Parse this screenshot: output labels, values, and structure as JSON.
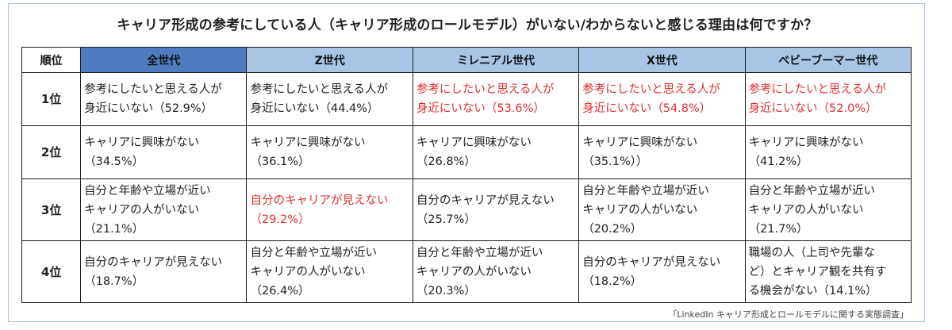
{
  "title": "キャリア形成の参考にしている人（キャリア形成のロールモデル）がいない/わからないと感じる理由は何ですか？",
  "headers": [
    "順位",
    "全世代",
    "Z世代",
    "ミレニアル世代",
    "X世代",
    "ベビーブーマー世代"
  ],
  "rows": [
    {
      "rank": "1位",
      "cells": [
        {
          "lines": [
            "参考にしたいと思える人が",
            "身近にいない（52.9%）"
          ],
          "highlight": false
        },
        {
          "lines": [
            "参考にしたいと思える人が",
            "身近にいない（44.4%）"
          ],
          "highlight": false
        },
        {
          "lines": [
            "参考にしたいと思える人が",
            "身近にいない（53.6%）"
          ],
          "highlight": true
        },
        {
          "lines": [
            "参考にしたいと思える人が",
            "身近にいない（54.8%）"
          ],
          "highlight": true
        },
        {
          "lines": [
            "参考にしたいと思える人が",
            "身近にいない（52.0%）"
          ],
          "highlight": true
        }
      ]
    },
    {
      "rank": "2位",
      "cells": [
        {
          "lines": [
            "キャリアに興味がない",
            "（34.5%）"
          ],
          "highlight": false
        },
        {
          "lines": [
            "キャリアに興味がない",
            "（36.1%）"
          ],
          "highlight": false
        },
        {
          "lines": [
            "キャリアに興味がない",
            "（26.8%）"
          ],
          "highlight": false
        },
        {
          "lines": [
            "キャリアに興味がない",
            "（35.1%））"
          ],
          "highlight": false
        },
        {
          "lines": [
            "キャリアに興味がない",
            "（41.2%）"
          ],
          "highlight": false
        }
      ]
    },
    {
      "rank": "3位",
      "cells": [
        {
          "lines": [
            "自分と年齢や立場が近い",
            "キャリアの人がいない",
            "（21.1%）"
          ],
          "highlight": false
        },
        {
          "lines": [
            "自分のキャリアが見えない",
            "（29.2%）"
          ],
          "highlight": true
        },
        {
          "lines": [
            "自分のキャリアが見えない",
            "（25.7%）"
          ],
          "highlight": false
        },
        {
          "lines": [
            "自分と年齢や立場が近い",
            "キャリアの人がいない",
            "（20.2%）"
          ],
          "highlight": false
        },
        {
          "lines": [
            "自分と年齢や立場が近い",
            "キャリアの人がいない",
            "（21.7%）"
          ],
          "highlight": false
        }
      ]
    },
    {
      "rank": "4位",
      "cells": [
        {
          "lines": [
            "自分のキャリアが見えない",
            "（18.7%）"
          ],
          "highlight": false
        },
        {
          "lines": [
            "自分と年齢や立場が近い",
            "キャリアの人がいない",
            "（26.4%）"
          ],
          "highlight": false
        },
        {
          "lines": [
            "自分と年齢や立場が近い",
            "キャリアの人がいない",
            "（20.3%）"
          ],
          "highlight": false
        },
        {
          "lines": [
            "自分のキャリアが見えない",
            "（18.2%）"
          ],
          "highlight": false
        },
        {
          "lines": [
            "職場の人（上司や先輩な",
            "ど）とキャリア観を共有す",
            "る機会がない（14.1%）"
          ],
          "highlight": false
        }
      ]
    }
  ],
  "source": "「LinkedIn キャリア形成とロールモデルに関する実態調査」",
  "colors": {
    "header_bg": "#a9c4e5",
    "all_header_bg": "#4d7cc0",
    "highlight_text": "#e03030",
    "frame_border": "#a9c6e6"
  }
}
